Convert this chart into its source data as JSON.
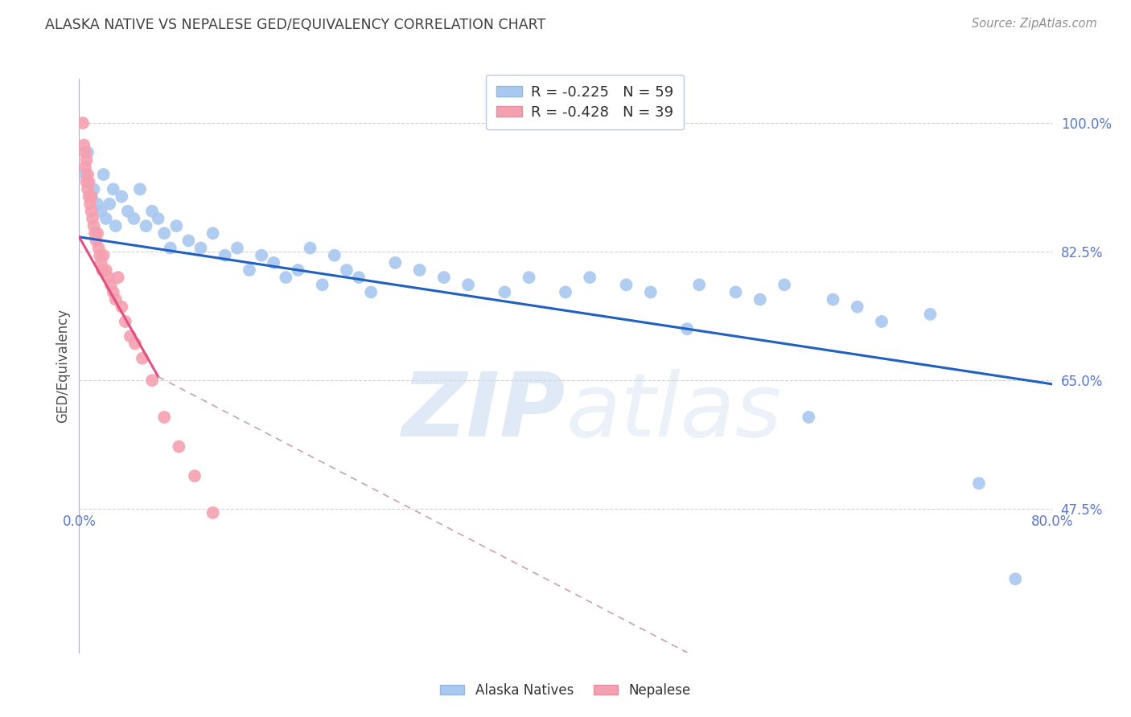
{
  "title": "ALASKA NATIVE VS NEPALESE GED/EQUIVALENCY CORRELATION CHART",
  "source": "Source: ZipAtlas.com",
  "ylabel": "GED/Equivalency",
  "watermark": "ZIPatlas",
  "xlim": [
    0.0,
    0.8
  ],
  "ylim": [
    0.28,
    1.06
  ],
  "yticks": [
    0.475,
    0.65,
    0.825,
    1.0
  ],
  "ytick_labels": [
    "47.5%",
    "65.0%",
    "82.5%",
    "100.0%"
  ],
  "legend_blue_r": "-0.225",
  "legend_blue_n": "59",
  "legend_pink_r": "-0.428",
  "legend_pink_n": "39",
  "blue_color": "#a8c8f0",
  "pink_color": "#f5a0b0",
  "blue_line_color": "#2060c0",
  "pink_line_color": "#e05080",
  "pink_line_dashed_color": "#c8a0b8",
  "grid_color": "#d0d0e0",
  "title_color": "#404040",
  "axis_color": "#5878c8",
  "blue_x": [
    0.005,
    0.007,
    0.01,
    0.012,
    0.015,
    0.018,
    0.02,
    0.022,
    0.025,
    0.028,
    0.03,
    0.035,
    0.04,
    0.045,
    0.05,
    0.055,
    0.06,
    0.065,
    0.07,
    0.075,
    0.08,
    0.09,
    0.1,
    0.11,
    0.12,
    0.13,
    0.14,
    0.15,
    0.16,
    0.17,
    0.18,
    0.19,
    0.2,
    0.21,
    0.22,
    0.23,
    0.24,
    0.26,
    0.28,
    0.3,
    0.32,
    0.35,
    0.37,
    0.4,
    0.42,
    0.45,
    0.47,
    0.5,
    0.51,
    0.54,
    0.56,
    0.58,
    0.6,
    0.62,
    0.64,
    0.66,
    0.7,
    0.74,
    0.77
  ],
  "blue_y": [
    0.93,
    0.96,
    0.9,
    0.91,
    0.89,
    0.88,
    0.93,
    0.87,
    0.89,
    0.91,
    0.86,
    0.9,
    0.88,
    0.87,
    0.91,
    0.86,
    0.88,
    0.87,
    0.85,
    0.83,
    0.86,
    0.84,
    0.83,
    0.85,
    0.82,
    0.83,
    0.8,
    0.82,
    0.81,
    0.79,
    0.8,
    0.83,
    0.78,
    0.82,
    0.8,
    0.79,
    0.77,
    0.81,
    0.8,
    0.79,
    0.78,
    0.77,
    0.79,
    0.77,
    0.79,
    0.78,
    0.77,
    0.72,
    0.78,
    0.77,
    0.76,
    0.78,
    0.6,
    0.76,
    0.75,
    0.73,
    0.74,
    0.51,
    0.38
  ],
  "pink_x": [
    0.003,
    0.004,
    0.005,
    0.005,
    0.006,
    0.006,
    0.007,
    0.007,
    0.008,
    0.008,
    0.009,
    0.01,
    0.01,
    0.011,
    0.012,
    0.013,
    0.014,
    0.015,
    0.016,
    0.017,
    0.018,
    0.019,
    0.02,
    0.022,
    0.024,
    0.026,
    0.028,
    0.03,
    0.032,
    0.035,
    0.038,
    0.042,
    0.046,
    0.052,
    0.06,
    0.07,
    0.082,
    0.095,
    0.11
  ],
  "pink_y": [
    1.0,
    0.97,
    0.94,
    0.96,
    0.95,
    0.92,
    0.93,
    0.91,
    0.9,
    0.92,
    0.89,
    0.88,
    0.9,
    0.87,
    0.86,
    0.85,
    0.84,
    0.85,
    0.83,
    0.82,
    0.81,
    0.8,
    0.82,
    0.8,
    0.79,
    0.78,
    0.77,
    0.76,
    0.79,
    0.75,
    0.73,
    0.71,
    0.7,
    0.68,
    0.65,
    0.6,
    0.56,
    0.52,
    0.47
  ],
  "blue_trend_x0": 0.0,
  "blue_trend_x1": 0.8,
  "blue_trend_y0": 0.845,
  "blue_trend_y1": 0.645,
  "pink_trend_solid_x0": 0.0,
  "pink_trend_solid_x1": 0.065,
  "pink_trend_solid_y0": 0.845,
  "pink_trend_solid_y1": 0.655,
  "pink_trend_dashed_x0": 0.065,
  "pink_trend_dashed_x1": 0.5,
  "pink_trend_dashed_y0": 0.655,
  "pink_trend_dashed_y1": 0.28
}
